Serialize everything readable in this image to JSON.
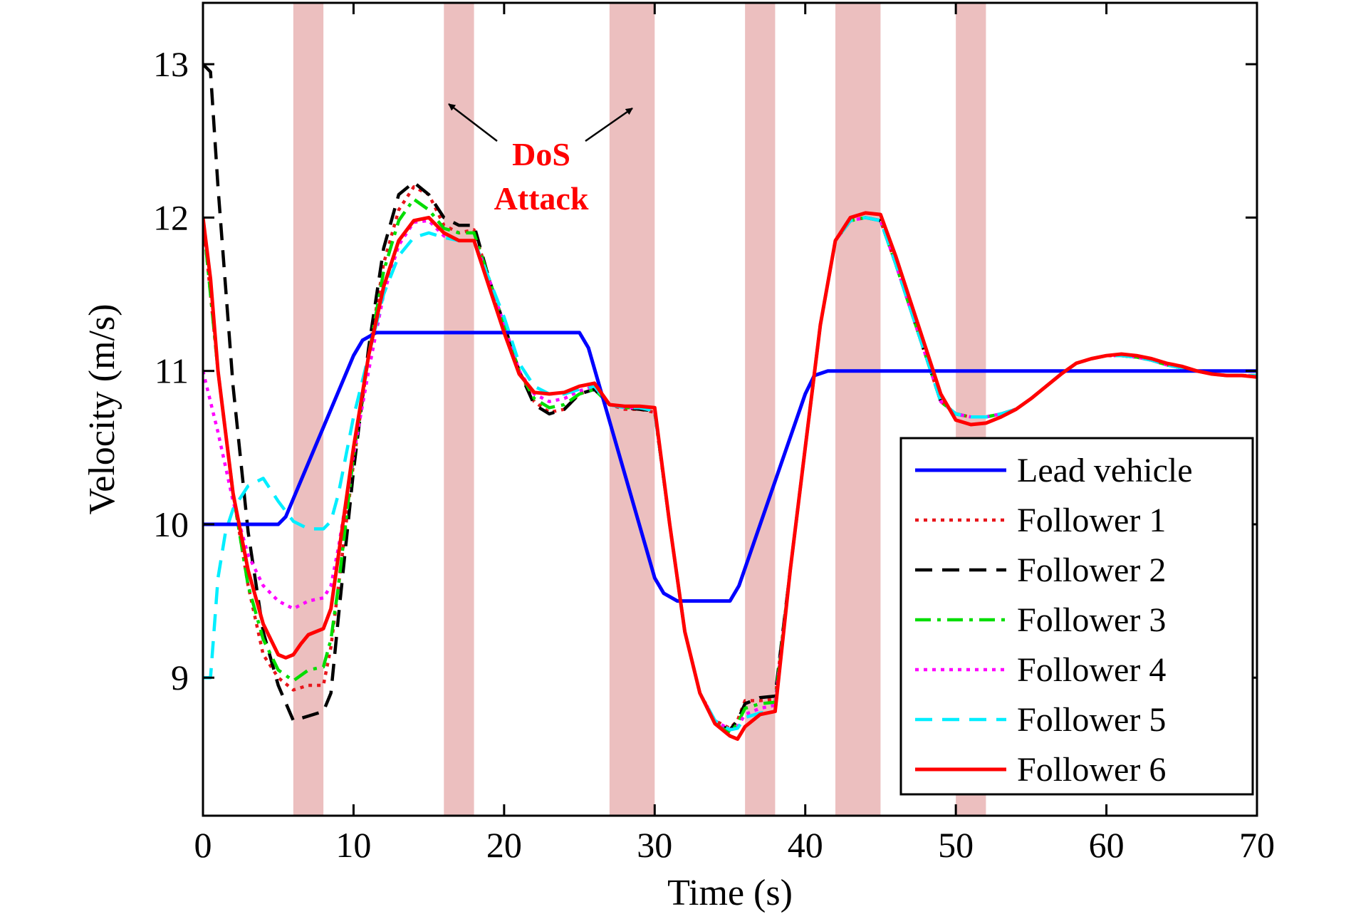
{
  "chart_data": {
    "type": "line",
    "xlabel": "Time (s)",
    "ylabel": "Velocity (m/s)",
    "xlim": [
      0,
      70
    ],
    "ylim": [
      8.1,
      13.4
    ],
    "xticks": [
      0,
      10,
      20,
      30,
      40,
      50,
      60,
      70
    ],
    "yticks": [
      9,
      10,
      11,
      12,
      13
    ],
    "grid": false,
    "legend_position": "bottom-right",
    "attack_intervals": [
      [
        6,
        8
      ],
      [
        16,
        18
      ],
      [
        27,
        30
      ],
      [
        36,
        38
      ],
      [
        42,
        45
      ],
      [
        50,
        52
      ]
    ],
    "attack_color": "#ecbfbf",
    "annotation": {
      "line1": "DoS",
      "line2": "Attack",
      "color": "#ff0000"
    },
    "series": [
      {
        "name": "Lead vehicle",
        "color": "#0000ff",
        "dash": "solid",
        "x": [
          0,
          5,
          5.5,
          10,
          10.6,
          11.5,
          25,
          25.6,
          30,
          30.6,
          31.5,
          35,
          35.6,
          40,
          40.6,
          41.5,
          70
        ],
        "y": [
          10,
          10,
          10.05,
          11.1,
          11.2,
          11.25,
          11.25,
          11.15,
          9.65,
          9.55,
          9.5,
          9.5,
          9.6,
          10.85,
          10.97,
          11,
          11
        ]
      },
      {
        "name": "Follower 1",
        "color": "#e8151b",
        "dash": "dotted",
        "x": [
          0,
          1,
          2,
          3,
          4,
          5,
          6,
          7,
          8,
          8.5,
          9,
          10,
          11,
          12,
          13,
          14,
          15,
          16,
          17,
          18,
          19,
          20,
          21,
          22,
          23,
          24,
          25,
          26,
          27,
          28,
          29,
          30,
          31,
          32,
          33,
          34,
          35,
          35.5,
          36,
          37,
          38,
          39,
          40,
          41,
          42,
          43,
          44,
          45,
          46,
          47,
          48,
          49,
          50,
          51,
          52,
          53,
          54,
          55,
          56,
          57,
          58,
          59,
          60,
          61,
          62,
          63,
          64,
          65,
          66,
          67,
          68,
          69,
          70
        ],
        "y": [
          12.0,
          11.0,
          10.2,
          9.6,
          9.15,
          9.0,
          8.92,
          8.95,
          8.95,
          9.2,
          9.6,
          10.4,
          11.1,
          11.7,
          12.05,
          12.2,
          12.15,
          11.95,
          11.9,
          11.92,
          11.6,
          11.3,
          11.0,
          10.8,
          10.73,
          10.75,
          10.85,
          10.88,
          10.78,
          10.75,
          10.75,
          10.73,
          10.0,
          9.3,
          8.9,
          8.72,
          8.67,
          8.72,
          8.85,
          8.85,
          8.86,
          9.7,
          10.5,
          11.3,
          11.85,
          11.98,
          12.0,
          11.98,
          11.7,
          11.4,
          11.1,
          10.8,
          10.72,
          10.7,
          10.7,
          10.72,
          10.75,
          10.82,
          10.9,
          10.98,
          11.05,
          11.08,
          11.1,
          11.1,
          11.09,
          11.07,
          11.04,
          11.02,
          11.0,
          10.98,
          10.97,
          10.97,
          10.97
        ]
      },
      {
        "name": "Follower 2",
        "color": "#000000",
        "dash": "dashed",
        "x": [
          0,
          0.5,
          1,
          2,
          3,
          4,
          5,
          6,
          7,
          8,
          8.5,
          9,
          10,
          11,
          12,
          13,
          14,
          15,
          16,
          17,
          18,
          19,
          20,
          21,
          22,
          23,
          24,
          25,
          26,
          27,
          28,
          29,
          30,
          31,
          32,
          33,
          34,
          35,
          35.5,
          36,
          37,
          38,
          39,
          40,
          41,
          42,
          43,
          44,
          45,
          46,
          47,
          48,
          49,
          50,
          51,
          52,
          53,
          54,
          55,
          56,
          57,
          58,
          59,
          60,
          61,
          62,
          63,
          64,
          65,
          66,
          67,
          68,
          69,
          70
        ],
        "y": [
          13.0,
          12.95,
          12.2,
          10.9,
          9.95,
          9.3,
          8.95,
          8.72,
          8.75,
          8.78,
          8.9,
          9.4,
          10.35,
          11.15,
          11.8,
          12.15,
          12.23,
          12.15,
          12.0,
          11.95,
          11.95,
          11.6,
          11.3,
          11.0,
          10.78,
          10.72,
          10.75,
          10.85,
          10.88,
          10.78,
          10.76,
          10.75,
          10.74,
          10.0,
          9.3,
          8.9,
          8.7,
          8.66,
          8.72,
          8.83,
          8.87,
          8.88,
          9.7,
          10.5,
          11.3,
          11.85,
          11.98,
          12.0,
          11.98,
          11.7,
          11.4,
          11.1,
          10.8,
          10.72,
          10.7,
          10.7,
          10.72,
          10.75,
          10.82,
          10.9,
          10.98,
          11.05,
          11.08,
          11.1,
          11.1,
          11.09,
          11.07,
          11.04,
          11.02,
          11.0,
          10.98,
          10.97,
          10.97,
          10.97
        ]
      },
      {
        "name": "Follower 3",
        "color": "#00dd00",
        "dash": "dashdot",
        "x": [
          0,
          1,
          2,
          3,
          4,
          5,
          6,
          7,
          8,
          8.5,
          9,
          10,
          11,
          12,
          13,
          14,
          15,
          16,
          17,
          18,
          19,
          20,
          21,
          22,
          23,
          24,
          25,
          26,
          27,
          28,
          29,
          30,
          31,
          32,
          33,
          34,
          35,
          35.5,
          36,
          37,
          38,
          39,
          40,
          41,
          42,
          43,
          44,
          45,
          46,
          47,
          48,
          49,
          50,
          51,
          52,
          53,
          54,
          55,
          56,
          57,
          58,
          59,
          60,
          61,
          62,
          63,
          64,
          65,
          66,
          67,
          68,
          69,
          70
        ],
        "y": [
          12.0,
          11.0,
          10.2,
          9.6,
          9.25,
          9.05,
          8.98,
          9.05,
          9.07,
          9.25,
          9.6,
          10.45,
          11.1,
          11.65,
          11.98,
          12.12,
          12.05,
          11.93,
          11.9,
          11.9,
          11.6,
          11.3,
          11.0,
          10.82,
          10.76,
          10.78,
          10.85,
          10.88,
          10.78,
          10.76,
          10.76,
          10.74,
          10.0,
          9.3,
          8.9,
          8.7,
          8.64,
          8.7,
          8.8,
          8.83,
          8.84,
          9.7,
          10.5,
          11.3,
          11.85,
          11.98,
          12.0,
          11.98,
          11.7,
          11.4,
          11.1,
          10.8,
          10.72,
          10.7,
          10.7,
          10.72,
          10.75,
          10.82,
          10.9,
          10.98,
          11.05,
          11.08,
          11.1,
          11.1,
          11.09,
          11.07,
          11.04,
          11.02,
          11.0,
          10.98,
          10.97,
          10.97,
          10.97
        ]
      },
      {
        "name": "Follower 4",
        "color": "#ff00ff",
        "dash": "dotted",
        "x": [
          0,
          1,
          2,
          3,
          4,
          5,
          6,
          7,
          8,
          8.5,
          9,
          10,
          11,
          12,
          13,
          14,
          15,
          16,
          17,
          18,
          19,
          20,
          21,
          22,
          23,
          24,
          25,
          26,
          27,
          28,
          29,
          30,
          31,
          32,
          33,
          34,
          35,
          35.5,
          36,
          37,
          38,
          39,
          40,
          41,
          42,
          43,
          44,
          45,
          46,
          47,
          48,
          49,
          50,
          51,
          52,
          53,
          54,
          55,
          56,
          57,
          58,
          59,
          60,
          61,
          62,
          63,
          64,
          65,
          66,
          67,
          68,
          69,
          70
        ],
        "y": [
          11.0,
          10.6,
          10.15,
          9.8,
          9.6,
          9.5,
          9.45,
          9.5,
          9.52,
          9.6,
          9.85,
          10.45,
          11.0,
          11.5,
          11.82,
          11.97,
          11.98,
          11.88,
          11.85,
          11.85,
          11.6,
          11.3,
          11.0,
          10.85,
          10.8,
          10.82,
          10.87,
          10.9,
          10.78,
          10.76,
          10.76,
          10.74,
          10.0,
          9.3,
          8.9,
          8.72,
          8.66,
          8.68,
          8.76,
          8.8,
          8.82,
          9.7,
          10.5,
          11.3,
          11.85,
          11.98,
          12.0,
          11.98,
          11.7,
          11.4,
          11.1,
          10.8,
          10.72,
          10.7,
          10.7,
          10.72,
          10.75,
          10.82,
          10.9,
          10.98,
          11.05,
          11.08,
          11.1,
          11.1,
          11.09,
          11.07,
          11.04,
          11.02,
          11.0,
          10.98,
          10.97,
          10.97,
          10.97
        ]
      },
      {
        "name": "Follower 5",
        "color": "#00eeff",
        "dash": "dashed",
        "x": [
          0,
          0.5,
          1,
          1.5,
          2,
          3,
          4,
          5,
          6,
          7,
          8,
          8.5,
          9,
          10,
          11,
          12,
          13,
          14,
          15,
          16,
          17,
          18,
          19,
          20,
          21,
          22,
          23,
          24,
          25,
          26,
          27,
          28,
          29,
          30,
          31,
          32,
          33,
          34,
          35,
          35.5,
          36,
          37,
          38,
          39,
          40,
          41,
          42,
          43,
          44,
          45,
          46,
          47,
          48,
          49,
          50,
          51,
          52,
          53,
          54,
          55,
          56,
          57,
          58,
          59,
          60,
          61,
          62,
          63,
          64,
          65,
          66,
          67,
          68,
          69,
          70
        ],
        "y": [
          9.0,
          9.0,
          9.65,
          9.95,
          10.1,
          10.25,
          10.3,
          10.15,
          10.02,
          9.97,
          9.97,
          10.02,
          10.2,
          10.7,
          11.1,
          11.5,
          11.75,
          11.87,
          11.9,
          11.87,
          11.85,
          11.85,
          11.6,
          11.35,
          11.05,
          10.9,
          10.85,
          10.85,
          10.88,
          10.9,
          10.78,
          10.76,
          10.76,
          10.74,
          10.0,
          9.3,
          8.9,
          8.72,
          8.66,
          8.67,
          8.74,
          8.77,
          8.78,
          9.7,
          10.5,
          11.3,
          11.85,
          11.98,
          12.0,
          11.98,
          11.7,
          11.4,
          11.1,
          10.8,
          10.72,
          10.7,
          10.7,
          10.72,
          10.75,
          10.82,
          10.9,
          10.98,
          11.05,
          11.08,
          11.1,
          11.1,
          11.09,
          11.07,
          11.04,
          11.02,
          11.0,
          10.98,
          10.97,
          10.97,
          10.97
        ]
      },
      {
        "name": "Follower 6",
        "color": "#ff0000",
        "dash": "solid",
        "x": [
          0,
          0.5,
          1,
          2,
          3,
          4,
          5,
          5.5,
          6,
          6.5,
          7,
          8,
          8.5,
          9,
          10,
          11,
          12,
          13,
          14,
          15,
          16,
          17,
          18,
          19,
          20,
          21,
          22,
          23,
          24,
          25,
          26,
          27,
          28,
          29,
          30,
          31,
          32,
          33,
          34,
          35,
          35.5,
          36,
          37,
          38,
          39,
          40,
          41,
          42,
          43,
          44,
          45,
          46,
          47,
          48,
          49,
          50,
          51,
          52,
          53,
          54,
          55,
          56,
          57,
          58,
          59,
          60,
          61,
          62,
          63,
          64,
          65,
          66,
          67,
          68,
          69,
          70
        ],
        "y": [
          12.0,
          11.6,
          11.0,
          10.2,
          9.7,
          9.35,
          9.15,
          9.13,
          9.15,
          9.22,
          9.28,
          9.32,
          9.45,
          9.8,
          10.5,
          11.1,
          11.55,
          11.85,
          11.98,
          12.0,
          11.9,
          11.85,
          11.85,
          11.55,
          11.25,
          10.98,
          10.86,
          10.85,
          10.86,
          10.9,
          10.92,
          10.78,
          10.77,
          10.77,
          10.76,
          10.0,
          9.3,
          8.9,
          8.7,
          8.62,
          8.6,
          8.68,
          8.76,
          8.78,
          9.7,
          10.5,
          11.3,
          11.85,
          12.0,
          12.03,
          12.02,
          11.75,
          11.45,
          11.15,
          10.85,
          10.68,
          10.65,
          10.66,
          10.7,
          10.75,
          10.82,
          10.9,
          10.98,
          11.05,
          11.08,
          11.1,
          11.11,
          11.1,
          11.08,
          11.05,
          11.03,
          11.0,
          10.98,
          10.97,
          10.97,
          10.96
        ]
      }
    ]
  }
}
